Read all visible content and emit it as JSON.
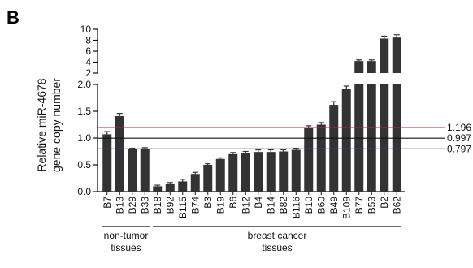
{
  "panel_label": "B",
  "chart_data": {
    "type": "bar",
    "ylabel_lines": [
      "Relative miR-4678",
      "gene copy number"
    ],
    "y_axis": {
      "broken": true,
      "lower_range": [
        0,
        2.0
      ],
      "lower_ticks": [
        "0.0",
        "0.5",
        "1.0",
        "1.5",
        "2.0"
      ],
      "upper_range": [
        2,
        10
      ],
      "upper_ticks": [
        "2",
        "4",
        "6",
        "8",
        "10"
      ]
    },
    "categories": [
      "B7",
      "B13",
      "B29",
      "B33",
      "B18",
      "B92",
      "B115",
      "B74",
      "B3",
      "B19",
      "B6",
      "B12",
      "B4",
      "B14",
      "B82",
      "B116",
      "B10",
      "B60",
      "B49",
      "B109",
      "B77",
      "B53",
      "B2",
      "B62"
    ],
    "values": [
      1.07,
      1.41,
      0.79,
      0.79,
      0.1,
      0.14,
      0.19,
      0.33,
      0.5,
      0.61,
      0.7,
      0.72,
      0.74,
      0.74,
      0.75,
      0.78,
      1.2,
      1.25,
      1.62,
      1.92,
      4.2,
      4.2,
      8.3,
      8.5
    ],
    "errors": [
      0.05,
      0.05,
      0.02,
      0.03,
      0.02,
      0.03,
      0.04,
      0.03,
      0.02,
      0.02,
      0.03,
      0.03,
      0.04,
      0.04,
      0.03,
      0.03,
      0.03,
      0.04,
      0.06,
      0.05,
      0.2,
      0.2,
      0.45,
      0.5
    ],
    "groups": [
      {
        "label_lines": [
          "non-tumor",
          "tissues"
        ],
        "start": 0,
        "end": 3
      },
      {
        "label_lines": [
          "breast cancer",
          "tissues"
        ],
        "start": 4,
        "end": 23
      }
    ],
    "reference_lines": [
      {
        "value": 1.196,
        "label": "1.196",
        "color": "#c0272d"
      },
      {
        "value": 0.997,
        "label": "0.997",
        "color": "#111111"
      },
      {
        "value": 0.797,
        "label": "0.797",
        "color": "#3b48a8"
      }
    ],
    "bar_color": "#333333",
    "grid": false
  }
}
